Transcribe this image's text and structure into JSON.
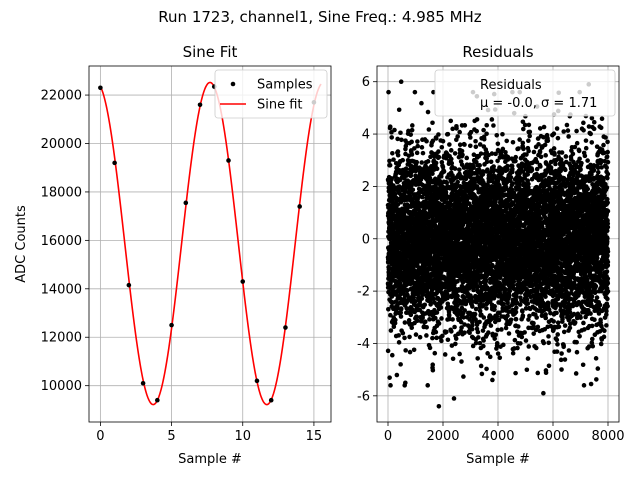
{
  "figure": {
    "suptitle": "Run 1723, channel1, Sine Freq.: 4.985 MHz"
  },
  "chart_data": [
    {
      "type": "line",
      "title": "Sine Fit",
      "xlabel": "Sample #",
      "ylabel": "ADC Counts",
      "xlim": [
        -0.8,
        16.2
      ],
      "ylim": [
        8500,
        23200
      ],
      "grid": true,
      "legend_position": "top-right",
      "x_ticks": [
        0,
        5,
        10,
        15
      ],
      "y_ticks": [
        10000,
        12000,
        14000,
        16000,
        18000,
        20000,
        22000
      ],
      "series": [
        {
          "name": "Samples",
          "style": "markers",
          "color": "#000000",
          "x": [
            0,
            1,
            2,
            3,
            4,
            5,
            6,
            7,
            8,
            9,
            10,
            11,
            12,
            13,
            14,
            15
          ],
          "y": [
            22300,
            19200,
            14150,
            10100,
            9400,
            12500,
            17550,
            21600,
            22350,
            19300,
            14300,
            10200,
            9400,
            12400,
            17400,
            21700
          ]
        },
        {
          "name": "Sine fit",
          "style": "line",
          "color": "#ff0000",
          "function": "sine",
          "offset": 15870,
          "amplitude": 6650,
          "period": 7.98,
          "peak_at": 7.7,
          "x_range": [
            0,
            15.5
          ]
        }
      ]
    },
    {
      "type": "scatter",
      "title": "Residuals",
      "xlabel": "Sample #",
      "ylabel": "",
      "xlim": [
        -400,
        8400
      ],
      "ylim": [
        -7,
        6.6
      ],
      "grid": true,
      "legend_position": "top-right",
      "x_ticks": [
        0,
        2000,
        4000,
        6000,
        8000
      ],
      "y_ticks": [
        -6,
        -4,
        -2,
        0,
        2,
        4,
        6
      ],
      "legend": {
        "series_name": "Residuals",
        "stats_line": "μ = -0.0, σ = 1.71"
      },
      "series": [
        {
          "name": "Residuals",
          "color": "#000000",
          "count": 8000,
          "mean": -0.0,
          "std": 1.71,
          "x_range": [
            0,
            8000
          ],
          "notable_points": [
            {
              "x": 7300,
              "y": 5.9
            },
            {
              "x": 480,
              "y": 6.0
            },
            {
              "x": 1850,
              "y": -6.4
            },
            {
              "x": 2400,
              "y": -6.1
            },
            {
              "x": 5650,
              "y": -5.9
            }
          ]
        }
      ]
    }
  ]
}
